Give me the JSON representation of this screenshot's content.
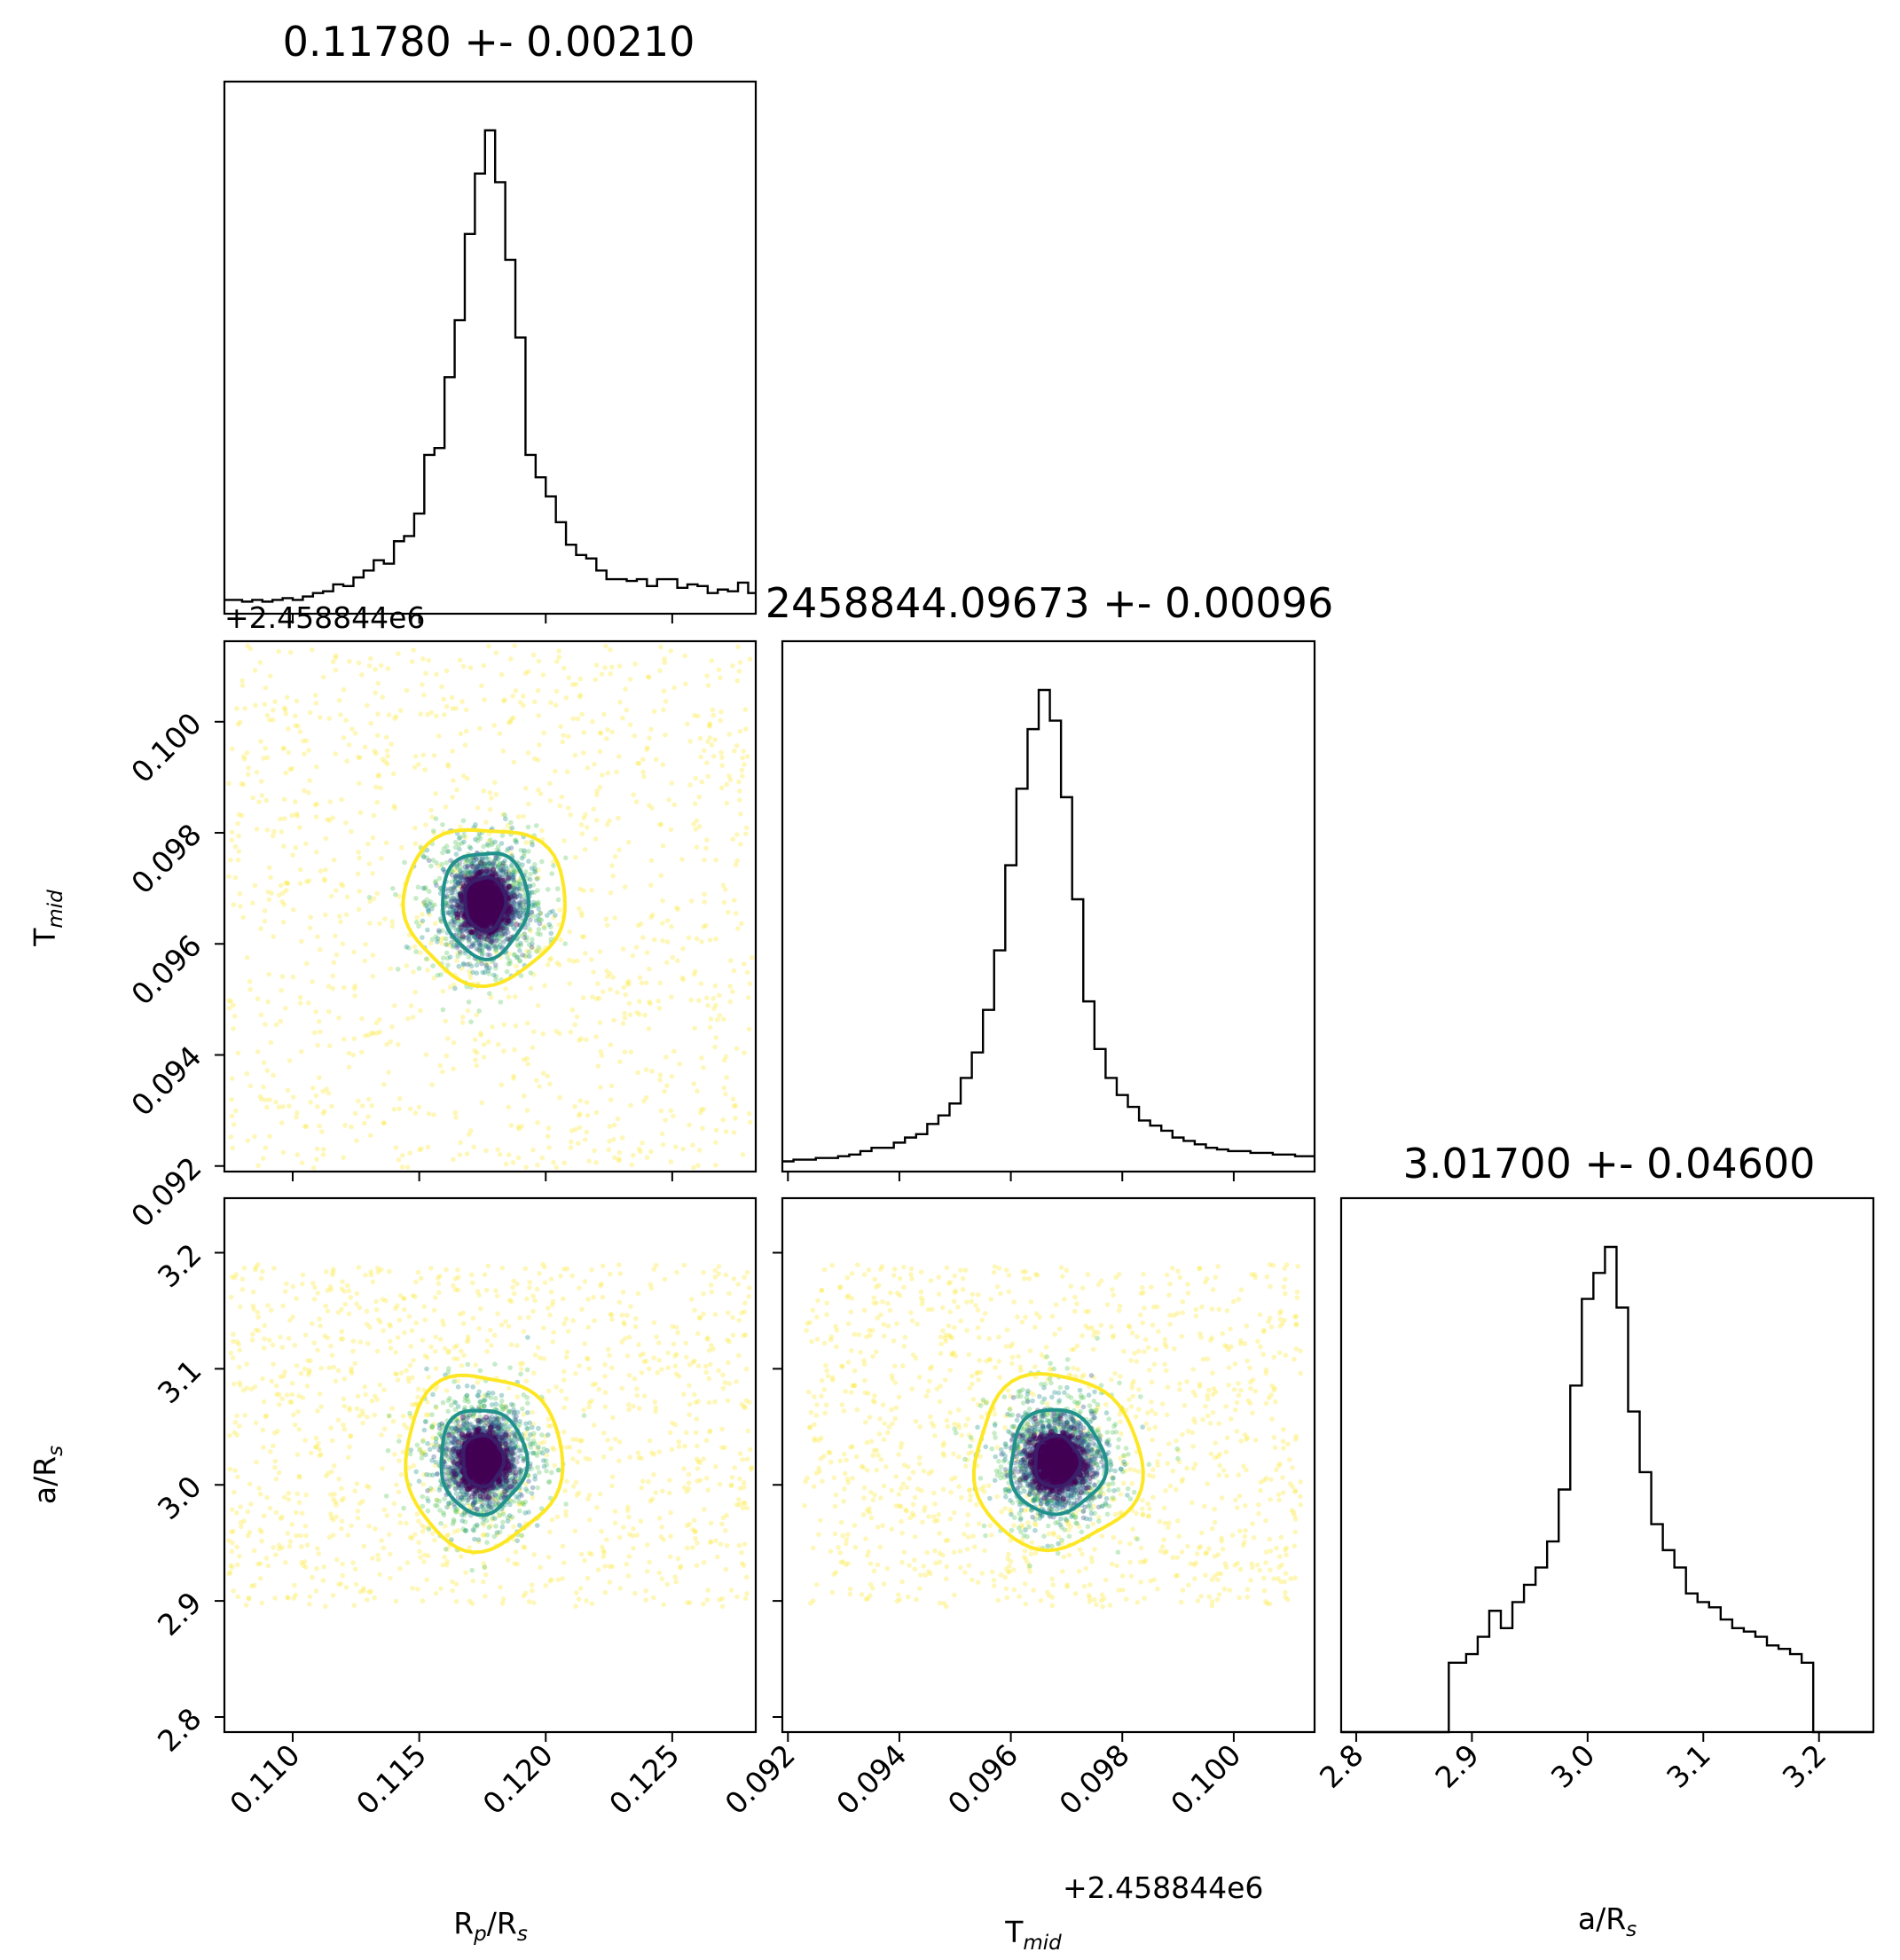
{
  "chart_data": {
    "type": "corner",
    "parameters": [
      {
        "name": "R_p/R_s",
        "label_main": "R",
        "label_sub": "p",
        "label_rest": "/R",
        "label_sub2": "s",
        "median": 0.1178,
        "sigma": 0.0021,
        "title": "0.11780 +- 0.00210",
        "range": [
          0.1073,
          0.1283
        ],
        "ticks": [
          0.11,
          0.115,
          0.12,
          0.125
        ],
        "tick_labels": [
          "0.110",
          "0.115",
          "0.120",
          "0.125"
        ]
      },
      {
        "name": "T_mid",
        "label_main": "T",
        "label_sub": "mid",
        "label_rest": "",
        "label_sub2": "",
        "median": 0.09673,
        "sigma": 0.00096,
        "title": "2458844.09673 +- 0.00096",
        "offset": "+2.458844e6",
        "range": [
          0.0919,
          0.10145
        ],
        "ticks": [
          0.092,
          0.094,
          0.096,
          0.098,
          0.1
        ],
        "tick_labels": [
          "0.092",
          "0.094",
          "0.096",
          "0.098",
          "0.100"
        ]
      },
      {
        "name": "a/R_s",
        "label_main": "a/R",
        "label_sub": "s",
        "label_rest": "",
        "label_sub2": "",
        "median": 3.017,
        "sigma": 0.046,
        "title": "3.01700 +- 0.04600",
        "range": [
          2.787,
          3.247
        ],
        "ticks": [
          2.8,
          2.9,
          3.0,
          3.1,
          3.2
        ],
        "tick_labels": [
          "2.8",
          "2.9",
          "3.0",
          "3.1",
          "3.2"
        ]
      }
    ],
    "histograms": [
      {
        "param": "R_p/R_s",
        "bin_centers": [
          0.1074,
          0.1078,
          0.1082,
          0.1086,
          0.109,
          0.1094,
          0.1098,
          0.1102,
          0.1106,
          0.111,
          0.1114,
          0.1118,
          0.1122,
          0.1126,
          0.113,
          0.1134,
          0.1138,
          0.1142,
          0.1146,
          0.115,
          0.1154,
          0.1158,
          0.1162,
          0.1166,
          0.117,
          0.1174,
          0.1178,
          0.1182,
          0.1186,
          0.119,
          0.1194,
          0.1198,
          0.1202,
          0.1206,
          0.121,
          0.1214,
          0.1218,
          0.1222,
          0.1226,
          0.123,
          0.1234,
          0.1238,
          0.1242,
          0.1246,
          0.125,
          0.1254,
          0.1258,
          0.1262,
          0.1266,
          0.127,
          0.1274,
          0.1278,
          0.1282
        ],
        "counts": [
          8,
          8,
          7,
          8,
          7,
          8,
          9,
          8,
          10,
          12,
          13,
          17,
          16,
          21,
          25,
          31,
          29,
          42,
          45,
          58,
          92,
          96,
          137,
          170,
          220,
          255,
          280,
          250,
          205,
          160,
          92,
          79,
          68,
          53,
          40,
          34,
          32,
          25,
          20,
          20,
          19,
          20,
          16,
          20,
          20,
          15,
          17,
          16,
          12,
          14,
          13,
          18,
          12
        ]
      },
      {
        "param": "T_mid",
        "bin_centers": [
          0.092,
          0.0922,
          0.0924,
          0.0926,
          0.0928,
          0.093,
          0.0932,
          0.0934,
          0.0936,
          0.0938,
          0.094,
          0.0942,
          0.0944,
          0.0946,
          0.0948,
          0.095,
          0.0952,
          0.0954,
          0.0956,
          0.0958,
          0.096,
          0.0962,
          0.0964,
          0.0966,
          0.0968,
          0.097,
          0.0972,
          0.0974,
          0.0976,
          0.0978,
          0.098,
          0.0982,
          0.0984,
          0.0986,
          0.0988,
          0.099,
          0.0992,
          0.0994,
          0.0996,
          0.0998,
          0.1,
          0.1002,
          0.1004,
          0.1006,
          0.1008,
          0.101,
          0.1012,
          0.1014
        ],
        "counts": [
          6,
          7,
          7,
          8,
          8,
          9,
          10,
          12,
          14,
          14,
          17,
          20,
          22,
          28,
          33,
          40,
          55,
          70,
          95,
          130,
          180,
          225,
          260,
          283,
          265,
          220,
          160,
          100,
          72,
          55,
          45,
          38,
          30,
          27,
          24,
          20,
          18,
          16,
          14,
          13,
          12,
          12,
          11,
          11,
          10,
          10,
          9,
          9
        ]
      },
      {
        "param": "a/R_s",
        "bin_centers": [
          2.79,
          2.81,
          2.83,
          2.85,
          2.87,
          2.89,
          2.9,
          2.91,
          2.92,
          2.93,
          2.94,
          2.95,
          2.96,
          2.97,
          2.98,
          2.99,
          3.0,
          3.01,
          3.02,
          3.03,
          3.04,
          3.05,
          3.06,
          3.07,
          3.08,
          3.09,
          3.1,
          3.11,
          3.12,
          3.13,
          3.14,
          3.15,
          3.16,
          3.17,
          3.18,
          3.19,
          3.2,
          3.22,
          3.24
        ],
        "counts": [
          0,
          0,
          0,
          0,
          0,
          40,
          45,
          55,
          70,
          60,
          75,
          85,
          95,
          110,
          140,
          200,
          250,
          265,
          280,
          245,
          185,
          150,
          120,
          105,
          95,
          80,
          75,
          72,
          65,
          60,
          58,
          55,
          50,
          48,
          45,
          40,
          0,
          0,
          0
        ]
      }
    ],
    "scatter_panels": [
      {
        "x": "R_p/R_s",
        "y": "T_mid",
        "center": [
          0.1176,
          0.09673
        ],
        "contours": [
          {
            "level": "inner",
            "color": "#3b1f6b",
            "radius": [
              0.0008,
              0.00048
            ]
          },
          {
            "level": "middle",
            "color": "#21918c",
            "radius": [
              0.0017,
              0.00095
            ]
          },
          {
            "level": "outer",
            "color": "#fde725",
            "radius": [
              0.0032,
              0.0014
            ]
          }
        ]
      },
      {
        "x": "R_p/R_s",
        "y": "a/R_s",
        "center": [
          0.1175,
          3.021
        ],
        "contours": [
          {
            "level": "inner",
            "color": "#3b1f6b",
            "radius": [
              0.0008,
              0.022
            ]
          },
          {
            "level": "middle",
            "color": "#21918c",
            "radius": [
              0.0017,
              0.045
            ]
          },
          {
            "level": "outer",
            "color": "#fde725",
            "radius": [
              0.0031,
              0.075
            ]
          }
        ]
      },
      {
        "x": "T_mid",
        "y": "a/R_s",
        "center": [
          0.09682,
          3.02
        ],
        "contours": [
          {
            "level": "inner",
            "color": "#3b1f6b",
            "radius": [
              0.0004,
              0.022
            ]
          },
          {
            "level": "middle",
            "color": "#21918c",
            "radius": [
              0.00085,
              0.045
            ]
          },
          {
            "level": "outer",
            "color": "#fde725",
            "radius": [
              0.0015,
              0.075
            ]
          }
        ]
      }
    ],
    "colors": {
      "inner": "#440154",
      "middle": "#21918c",
      "outer": "#fde725",
      "hist": "#000000"
    }
  }
}
